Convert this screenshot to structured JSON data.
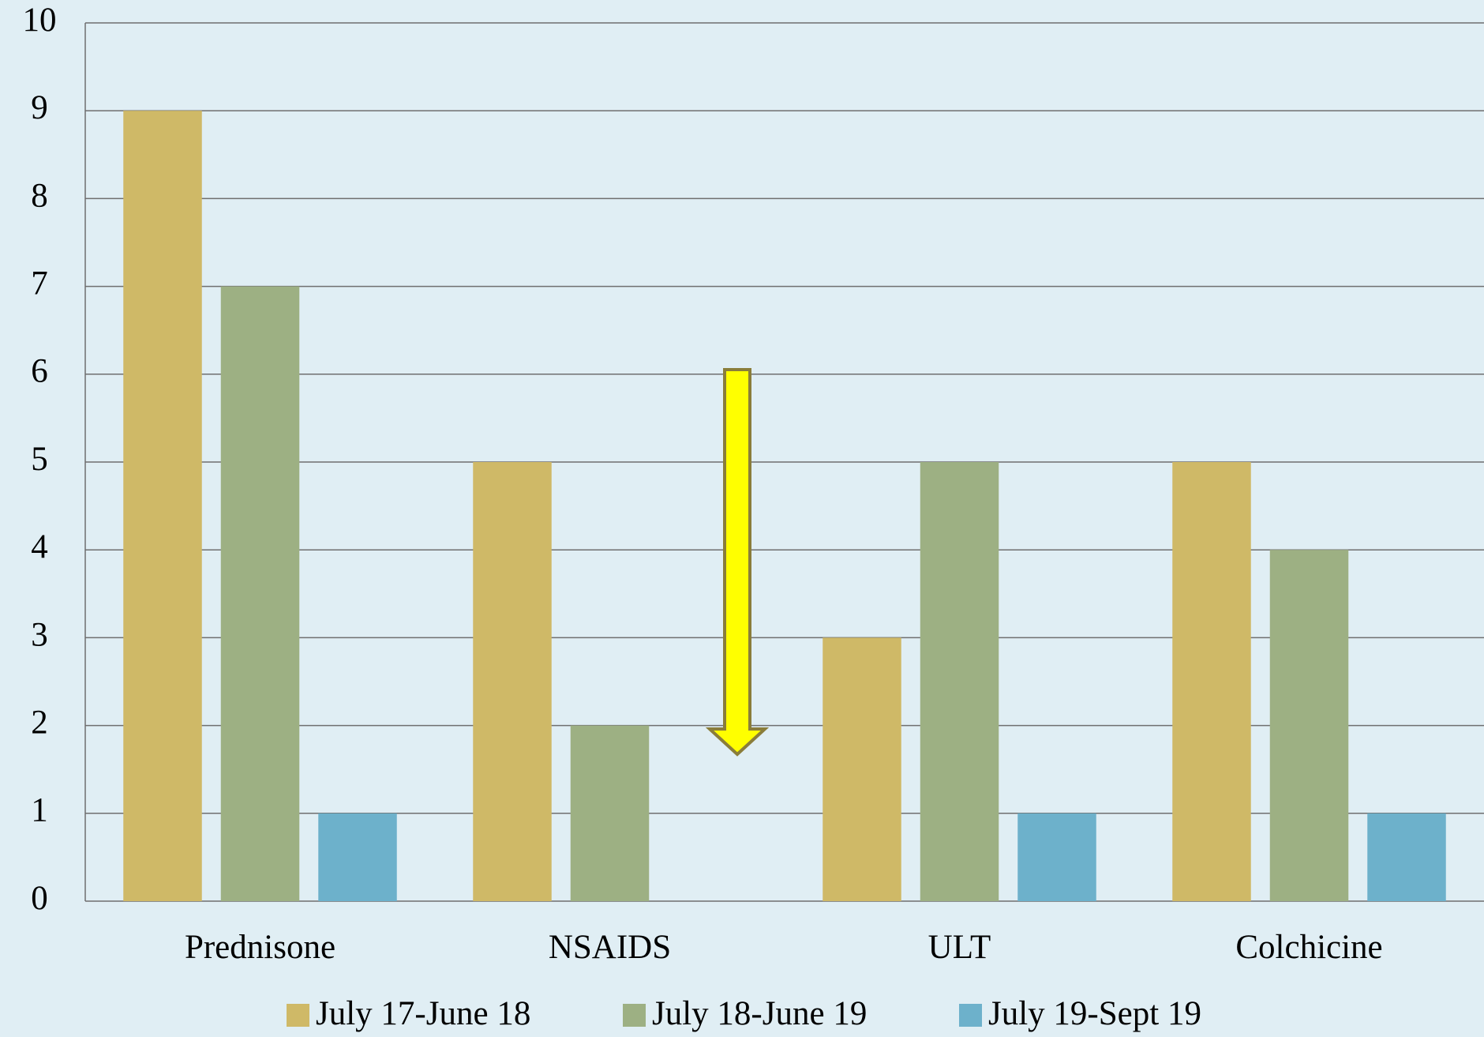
{
  "chart_data": {
    "type": "bar",
    "categories": [
      "Prednisone",
      "NSAIDS",
      "ULT",
      "Colchicine"
    ],
    "series": [
      {
        "name": "July 17-June 18",
        "color": "#cfb967",
        "values": [
          9,
          5,
          3,
          5
        ]
      },
      {
        "name": "July 18-June 19",
        "color": "#9db083",
        "values": [
          7,
          2,
          5,
          4
        ]
      },
      {
        "name": "July 19-Sept 19",
        "color": "#6db1cb",
        "values": [
          1,
          0,
          1,
          1
        ]
      }
    ],
    "ylim": [
      0,
      10
    ],
    "yticks": [
      0,
      1,
      2,
      3,
      4,
      5,
      6,
      7,
      8,
      9,
      10
    ],
    "grid": true,
    "legend": "bottom"
  }
}
